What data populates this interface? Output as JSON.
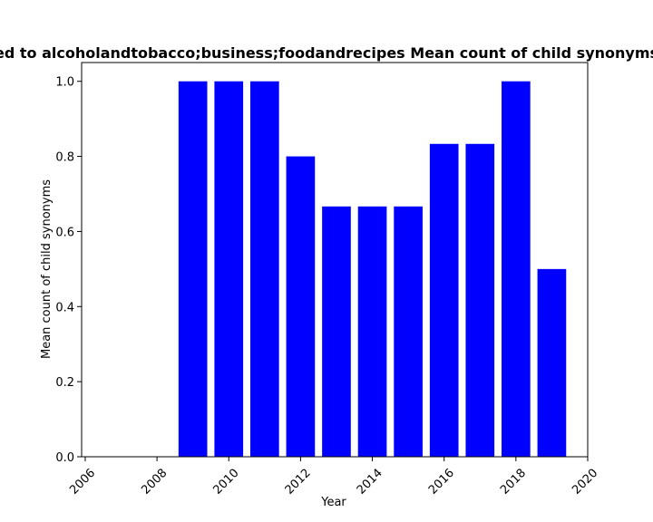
{
  "chart_data": {
    "type": "bar",
    "title": "ed to alcoholandtobacco;business;foodandrecipes Mean count of child synonyms",
    "xlabel": "Year",
    "ylabel": "Mean count of child synonyms",
    "x": [
      2009,
      2010,
      2011,
      2012,
      2013,
      2014,
      2015,
      2016,
      2017,
      2018,
      2019
    ],
    "values": [
      1.0,
      1.0,
      1.0,
      0.8,
      0.6667,
      0.6667,
      0.6667,
      0.8333,
      0.8333,
      1.0,
      0.5
    ],
    "xlim": [
      2005.9,
      2020.0
    ],
    "ylim": [
      0,
      1.05
    ],
    "xticks": [
      "2006",
      "2008",
      "2010",
      "2012",
      "2014",
      "2016",
      "2018",
      "2020"
    ],
    "yticks": [
      "0.0",
      "0.2",
      "0.4",
      "0.6",
      "0.8",
      "1.0"
    ],
    "bar_color": "#0000ff",
    "grid": false
  }
}
